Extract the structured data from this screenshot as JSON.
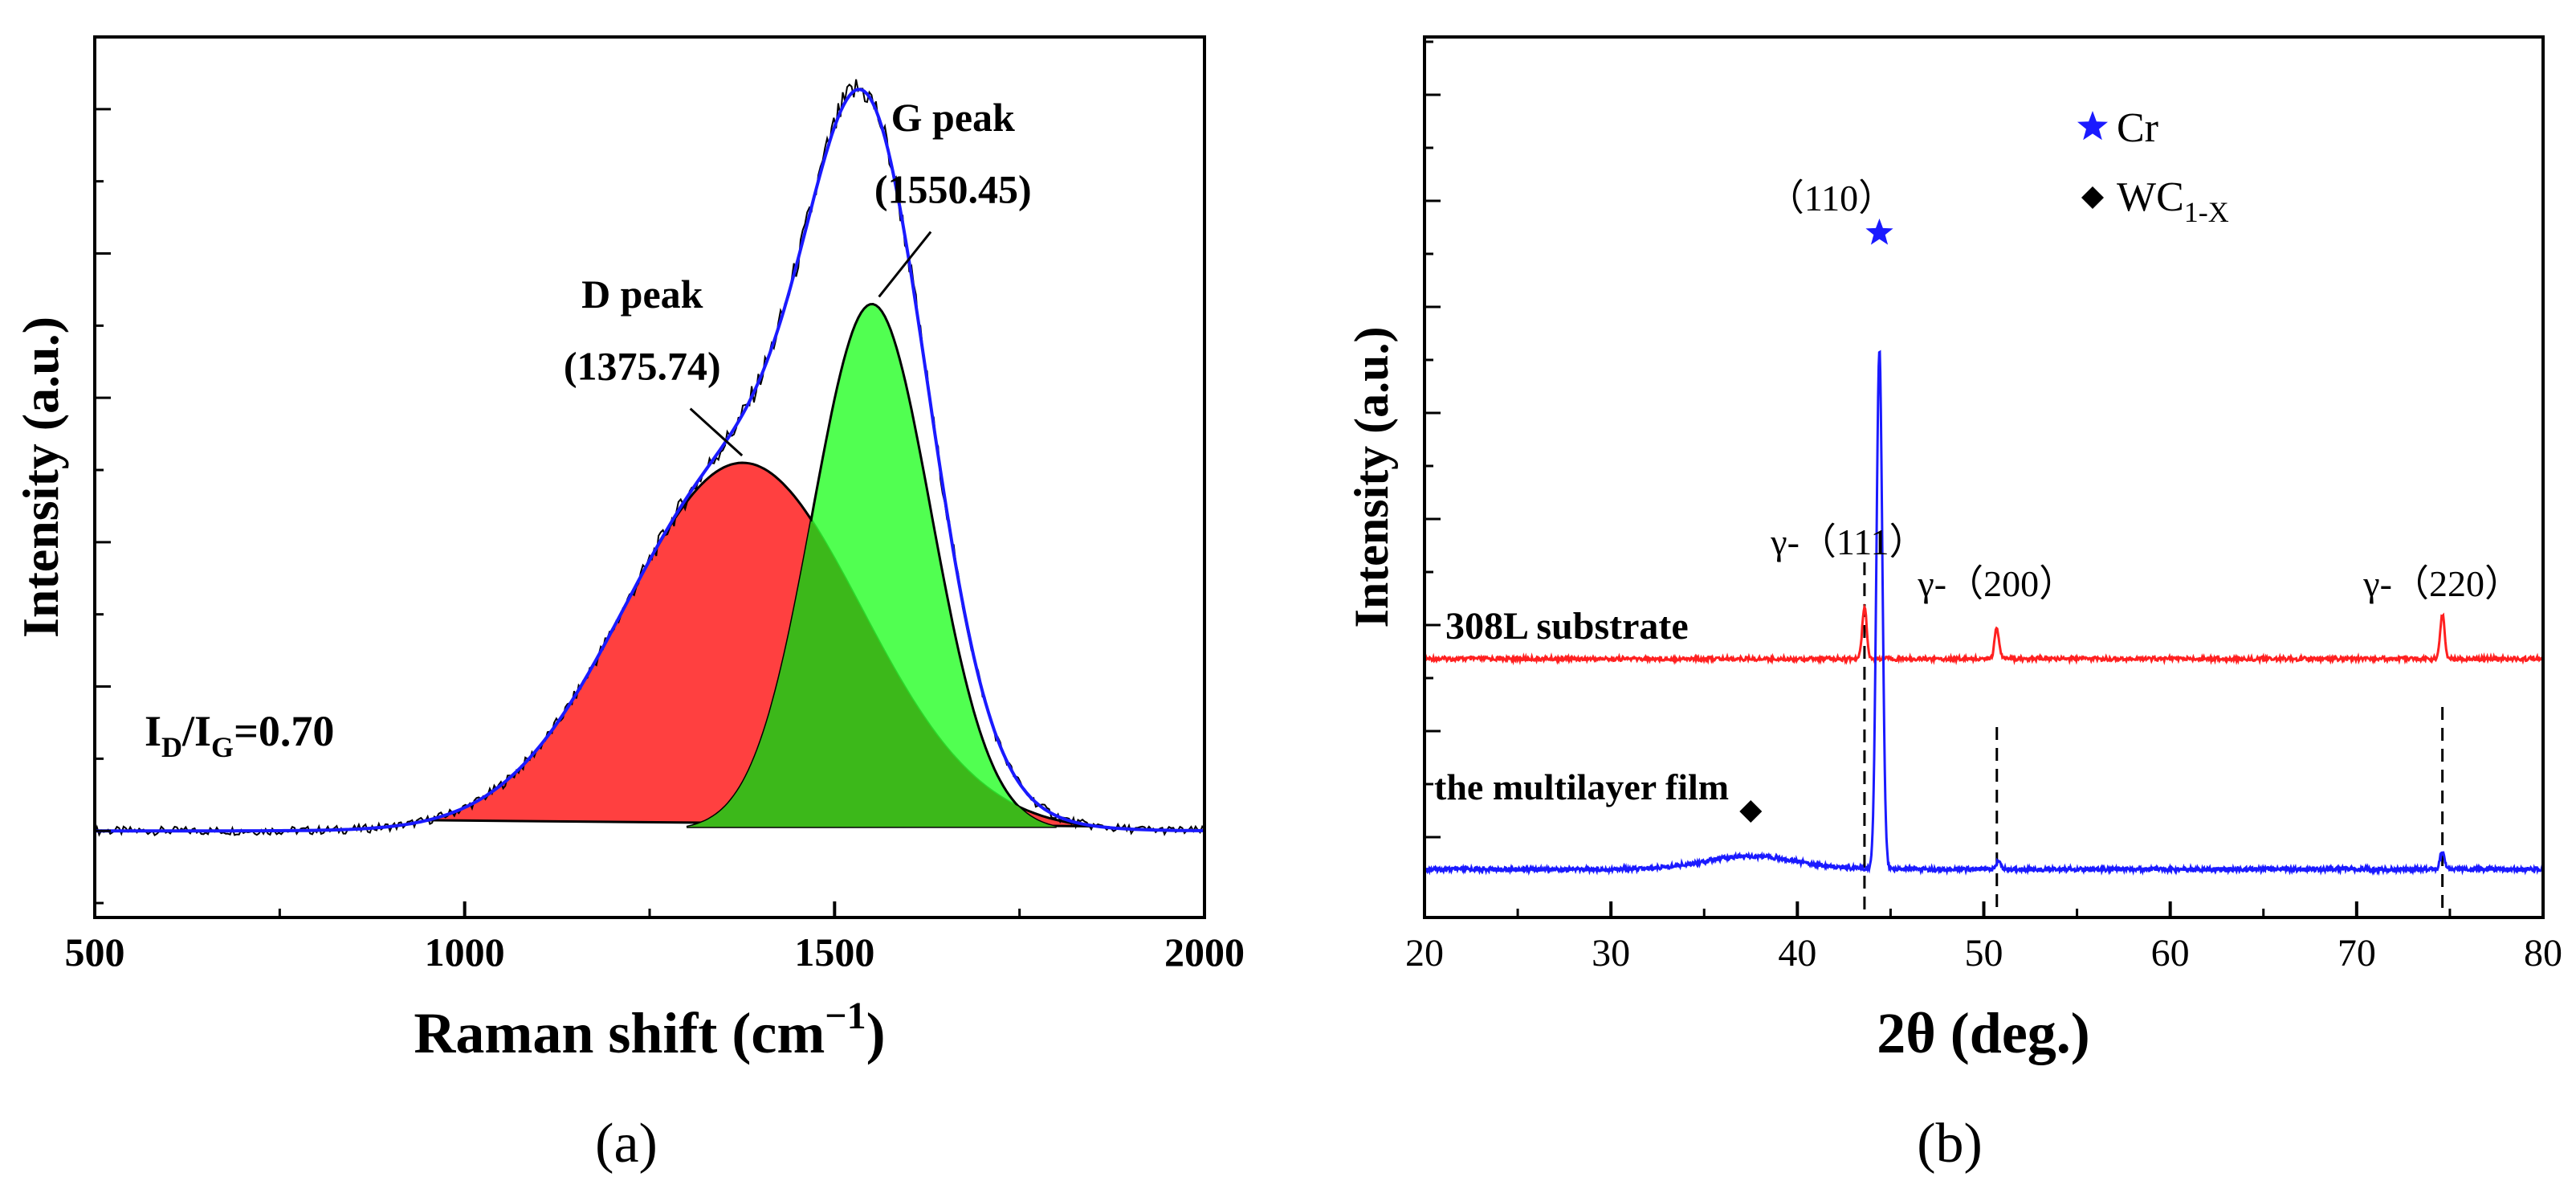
{
  "chart_data": [
    {
      "type": "line",
      "panel_label": "(a)",
      "xlabel": "Raman shift (cm",
      "xlabel_sup": "−1",
      "xlabel_end": ")",
      "ylabel": "Intensity (a.u.)",
      "xlim": [
        500,
        2000
      ],
      "ylim": [
        -0.12,
        1.1
      ],
      "xticks": [
        500,
        1000,
        1500,
        2000
      ],
      "yticks_unlabeled": true,
      "baseline": 0,
      "series": [
        {
          "role": "measured-spectrum",
          "x": [
            500,
            700,
            900,
            1000,
            1100,
            1200,
            1300,
            1375,
            1450,
            1500,
            1530,
            1545,
            1560,
            1600,
            1650,
            1700,
            1760,
            1850,
            2000
          ],
          "y": [
            0.0,
            0.0,
            0.0,
            0.02,
            0.12,
            0.3,
            0.5,
            0.62,
            0.78,
            0.9,
            0.99,
            1.0,
            0.98,
            0.78,
            0.45,
            0.16,
            0.03,
            0.0,
            0.0
          ]
        },
        {
          "role": "D-band-fit",
          "center": 1375.74,
          "amplitude": 0.51,
          "width": 160,
          "color": "#ff4040"
        },
        {
          "role": "G-band-fit",
          "center": 1550.45,
          "amplitude": 0.73,
          "width": 80,
          "color": "#33ff33"
        },
        {
          "role": "fit-envelope",
          "color": "#1a1aff"
        }
      ],
      "annotations": [
        {
          "line1": "D peak",
          "line2": "(1375.74)",
          "x": 1375.74
        },
        {
          "line1": "G peak",
          "line2": "(1550.45)",
          "x": 1550.45
        }
      ],
      "ratio_label": {
        "i": "I",
        "d": "D",
        "slash": "/I",
        "g": "G",
        "value": "=0.70"
      }
    },
    {
      "type": "line",
      "panel_label": "(b)",
      "xlabel": "2θ (deg.)",
      "ylabel": "Intensity (a.u.)",
      "xlim": [
        20,
        80
      ],
      "ylim": [
        0,
        10
      ],
      "xticks": [
        20,
        30,
        40,
        50,
        60,
        70,
        80
      ],
      "yticks_unlabeled": true,
      "series": [
        {
          "name": "308L substrate",
          "color": "#ff2020",
          "peaks": [
            43.6,
            50.7,
            74.6
          ],
          "peak_heights": [
            0.6,
            0.35,
            0.5
          ]
        },
        {
          "name": "the multilayer film",
          "color": "#1a1aff",
          "peaks": [
            44.4,
            50.8,
            74.6
          ],
          "peak_heights": [
            5.9,
            0.1,
            0.2
          ],
          "broad_hump": 37.5
        }
      ],
      "peak_labels": [
        {
          "text": "γ-（111）",
          "x": 43.6
        },
        {
          "text": "γ-（200）",
          "x": 50.7
        },
        {
          "text": "γ-（220）",
          "x": 74.6
        },
        {
          "text": "（110）",
          "x": 44.4
        }
      ],
      "dashed_markers_x": [
        43.6,
        50.7,
        74.6
      ],
      "legend": {
        "placement": "top-right",
        "entries": [
          {
            "symbol": "star",
            "label": "Cr",
            "color": "#1a1aff"
          },
          {
            "symbol": "diamond",
            "label": "WC",
            "sub": "1-X",
            "color": "#000000"
          }
        ]
      },
      "symbol_markers": [
        {
          "symbol": "star",
          "x": 44.4
        },
        {
          "symbol": "diamond",
          "x": 37.5
        }
      ]
    }
  ]
}
